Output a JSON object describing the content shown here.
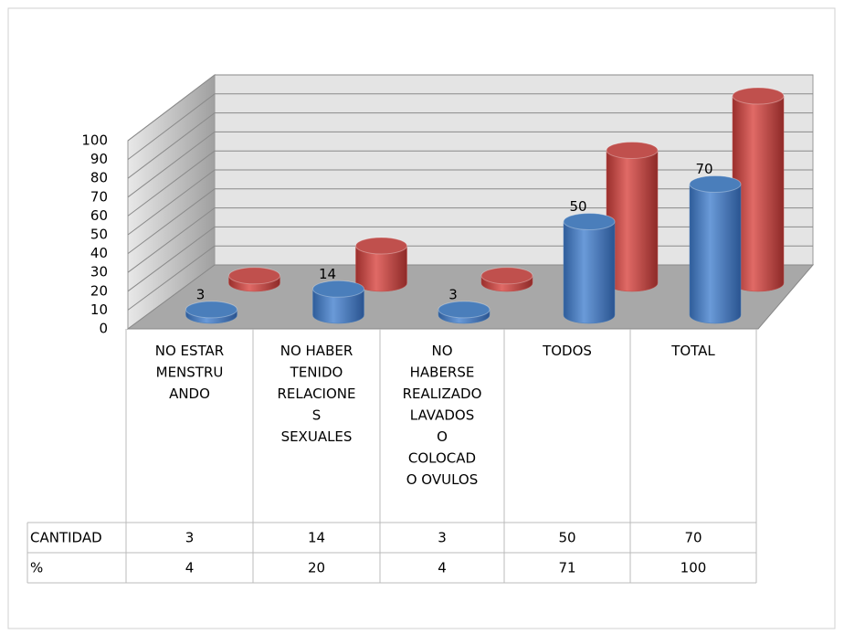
{
  "chart_data": {
    "type": "bar3d",
    "categories": [
      "NO ESTAR\nMENSTRU\nANDO",
      "NO HABER\nTENIDO\nRELACIONE\nS\nSEXUALES",
      "NO\nHABERSE\nREALIZADO\nLAVADOS\nO\nCOLOCAD\nO OVULOS",
      "TODOS",
      "TOTAL"
    ],
    "series": [
      {
        "name": "CANTIDAD",
        "color": "#4a7ebb",
        "values": [
          3,
          14,
          3,
          50,
          70
        ]
      },
      {
        "name": "%",
        "color": "#c0504d",
        "values": [
          4,
          20,
          4,
          71,
          100
        ]
      }
    ],
    "ylim": [
      0,
      100
    ],
    "yticks": [
      0,
      10,
      20,
      30,
      40,
      50,
      60,
      70,
      80,
      90,
      100
    ],
    "grid": true
  }
}
